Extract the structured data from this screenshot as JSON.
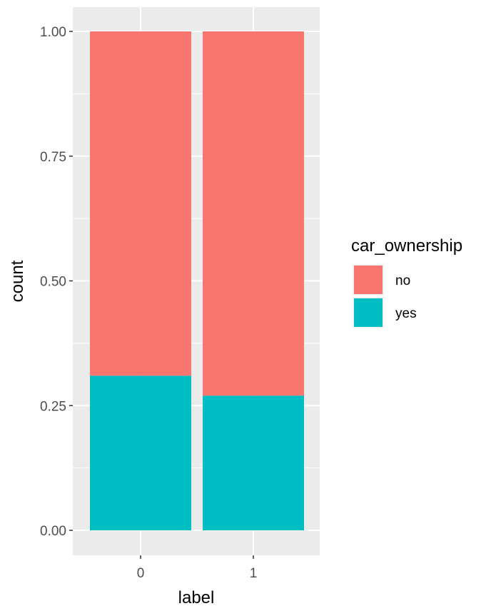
{
  "chart_data": {
    "type": "bar",
    "stacked": true,
    "position": "fill",
    "categories": [
      "0",
      "1"
    ],
    "series": [
      {
        "name": "no",
        "values": [
          0.69,
          0.73
        ],
        "color": "#F8766D"
      },
      {
        "name": "yes",
        "values": [
          0.31,
          0.27
        ],
        "color": "#00BFC4"
      }
    ],
    "xlabel": "label",
    "ylabel": "count",
    "ylim": [
      0,
      1
    ],
    "yticks": [
      "0.00",
      "0.25",
      "0.50",
      "0.75",
      "1.00"
    ],
    "legend": {
      "title": "car_ownership",
      "position": "right"
    },
    "grid": true,
    "panel_background": "#EBEBEB"
  }
}
